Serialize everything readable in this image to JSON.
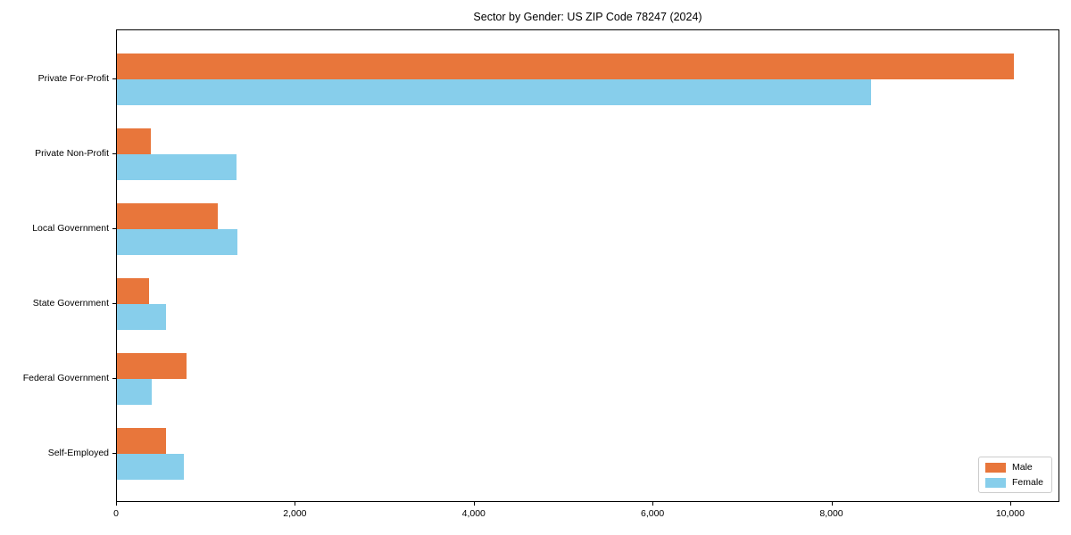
{
  "title": "Sector by Gender: US ZIP Code 78247 (2024)",
  "chart_data": {
    "type": "bar",
    "orientation": "horizontal",
    "title": "Sector by Gender: US ZIP Code 78247 (2024)",
    "categories": [
      "Private For-Profit",
      "Private Non-Profit",
      "Local Government",
      "State Government",
      "Federal Government",
      "Self-Employed"
    ],
    "series": [
      {
        "name": "Male",
        "color": "#E8763B",
        "values": [
          10030,
          380,
          1130,
          360,
          780,
          550
        ]
      },
      {
        "name": "Female",
        "color": "#87CEEB",
        "values": [
          8430,
          1340,
          1350,
          550,
          390,
          750
        ]
      }
    ],
    "xlabel": "",
    "ylabel": "",
    "xlim": [
      0,
      10550
    ],
    "xticks": [
      0,
      2000,
      4000,
      6000,
      8000,
      10000
    ],
    "xtick_labels": [
      "0",
      "2,000",
      "4,000",
      "6,000",
      "8,000",
      "10,000"
    ],
    "legend_position": "lower right",
    "grid": false
  }
}
